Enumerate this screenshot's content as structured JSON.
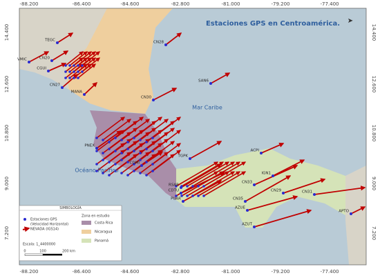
{
  "title": "Estaciones GPS en Centroamérica.",
  "lon_ticks": [
    "-88.200",
    "-86.400",
    "-84.600",
    "-82.800",
    "-81.000",
    "-79.200",
    "-77.400"
  ],
  "lat_ticks": [
    "14.400",
    "12.600",
    "10.800",
    "9.000",
    "7.200"
  ],
  "seas": [
    "Mar Caribe",
    "Océano Pacífico"
  ],
  "stations": [
    "TEGC",
    "VMIC",
    "CN20",
    "CGUI",
    "CN27",
    "MANA",
    "CN28",
    "SAN6",
    "CN30",
    "PNEX",
    "CDMI",
    "TGPK",
    "RSAR",
    "CDTU",
    "PUAR",
    "ACPI",
    "IGN1",
    "CN35",
    "CN33",
    "CN29",
    "CN31",
    "AZUE",
    "AZUT",
    "APTO"
  ],
  "legend": {
    "title": "SIMBOLOGÍA",
    "station": "Estaciones GPS",
    "velocity": "(Velocidad Horizontal)",
    "frame": "NEVADA (IGS14)",
    "zone_title": "Zona en estudio",
    "zones": [
      "Costa Rica",
      "Nicaragua",
      "Panamá"
    ],
    "scale": "Escala: 1_4400000",
    "scale_labels": [
      "0",
      "100",
      "200 km"
    ]
  }
}
